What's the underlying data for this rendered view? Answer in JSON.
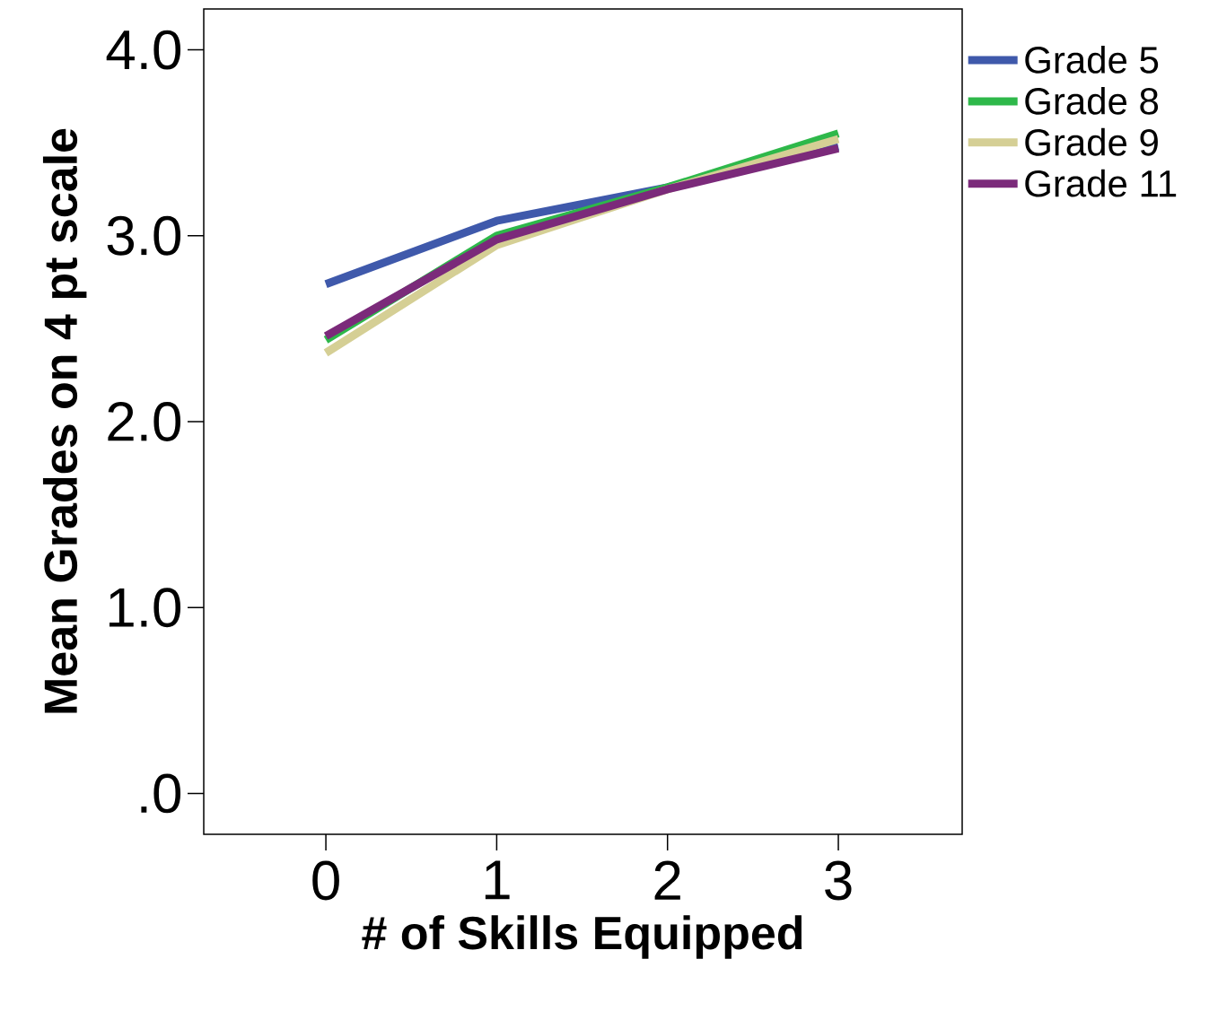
{
  "chart_data": {
    "type": "line",
    "xlabel": "# of Skills Equipped",
    "ylabel": "Mean Grades on 4 pt scale",
    "x": [
      0,
      1,
      2,
      3
    ],
    "xlim": [
      -0.715,
      3.725
    ],
    "xticks": [
      0,
      1,
      2,
      3
    ],
    "ylim": [
      -0.22,
      4.22
    ],
    "yticks": [
      {
        "value": 0,
        "label": ".0"
      },
      {
        "value": 1,
        "label": "1.0"
      },
      {
        "value": 2,
        "label": "2.0"
      },
      {
        "value": 3,
        "label": "3.0"
      },
      {
        "value": 4,
        "label": "4.0"
      }
    ],
    "grid": false,
    "legend": "top right",
    "marker": "none",
    "line_style": "solid",
    "series": [
      {
        "name": "Grade 5",
        "color": "#3f59ab",
        "values": [
          2.74,
          3.08,
          3.26,
          3.48
        ]
      },
      {
        "name": "Grade 8",
        "color": "#2eb84a",
        "values": [
          2.44,
          3.0,
          3.26,
          3.55
        ]
      },
      {
        "name": "Grade 9",
        "color": "#d5cf95",
        "values": [
          2.37,
          2.95,
          3.25,
          3.52
        ]
      },
      {
        "name": "Grade 11",
        "color": "#7b2a7a",
        "values": [
          2.46,
          2.98,
          3.25,
          3.47
        ]
      }
    ]
  }
}
